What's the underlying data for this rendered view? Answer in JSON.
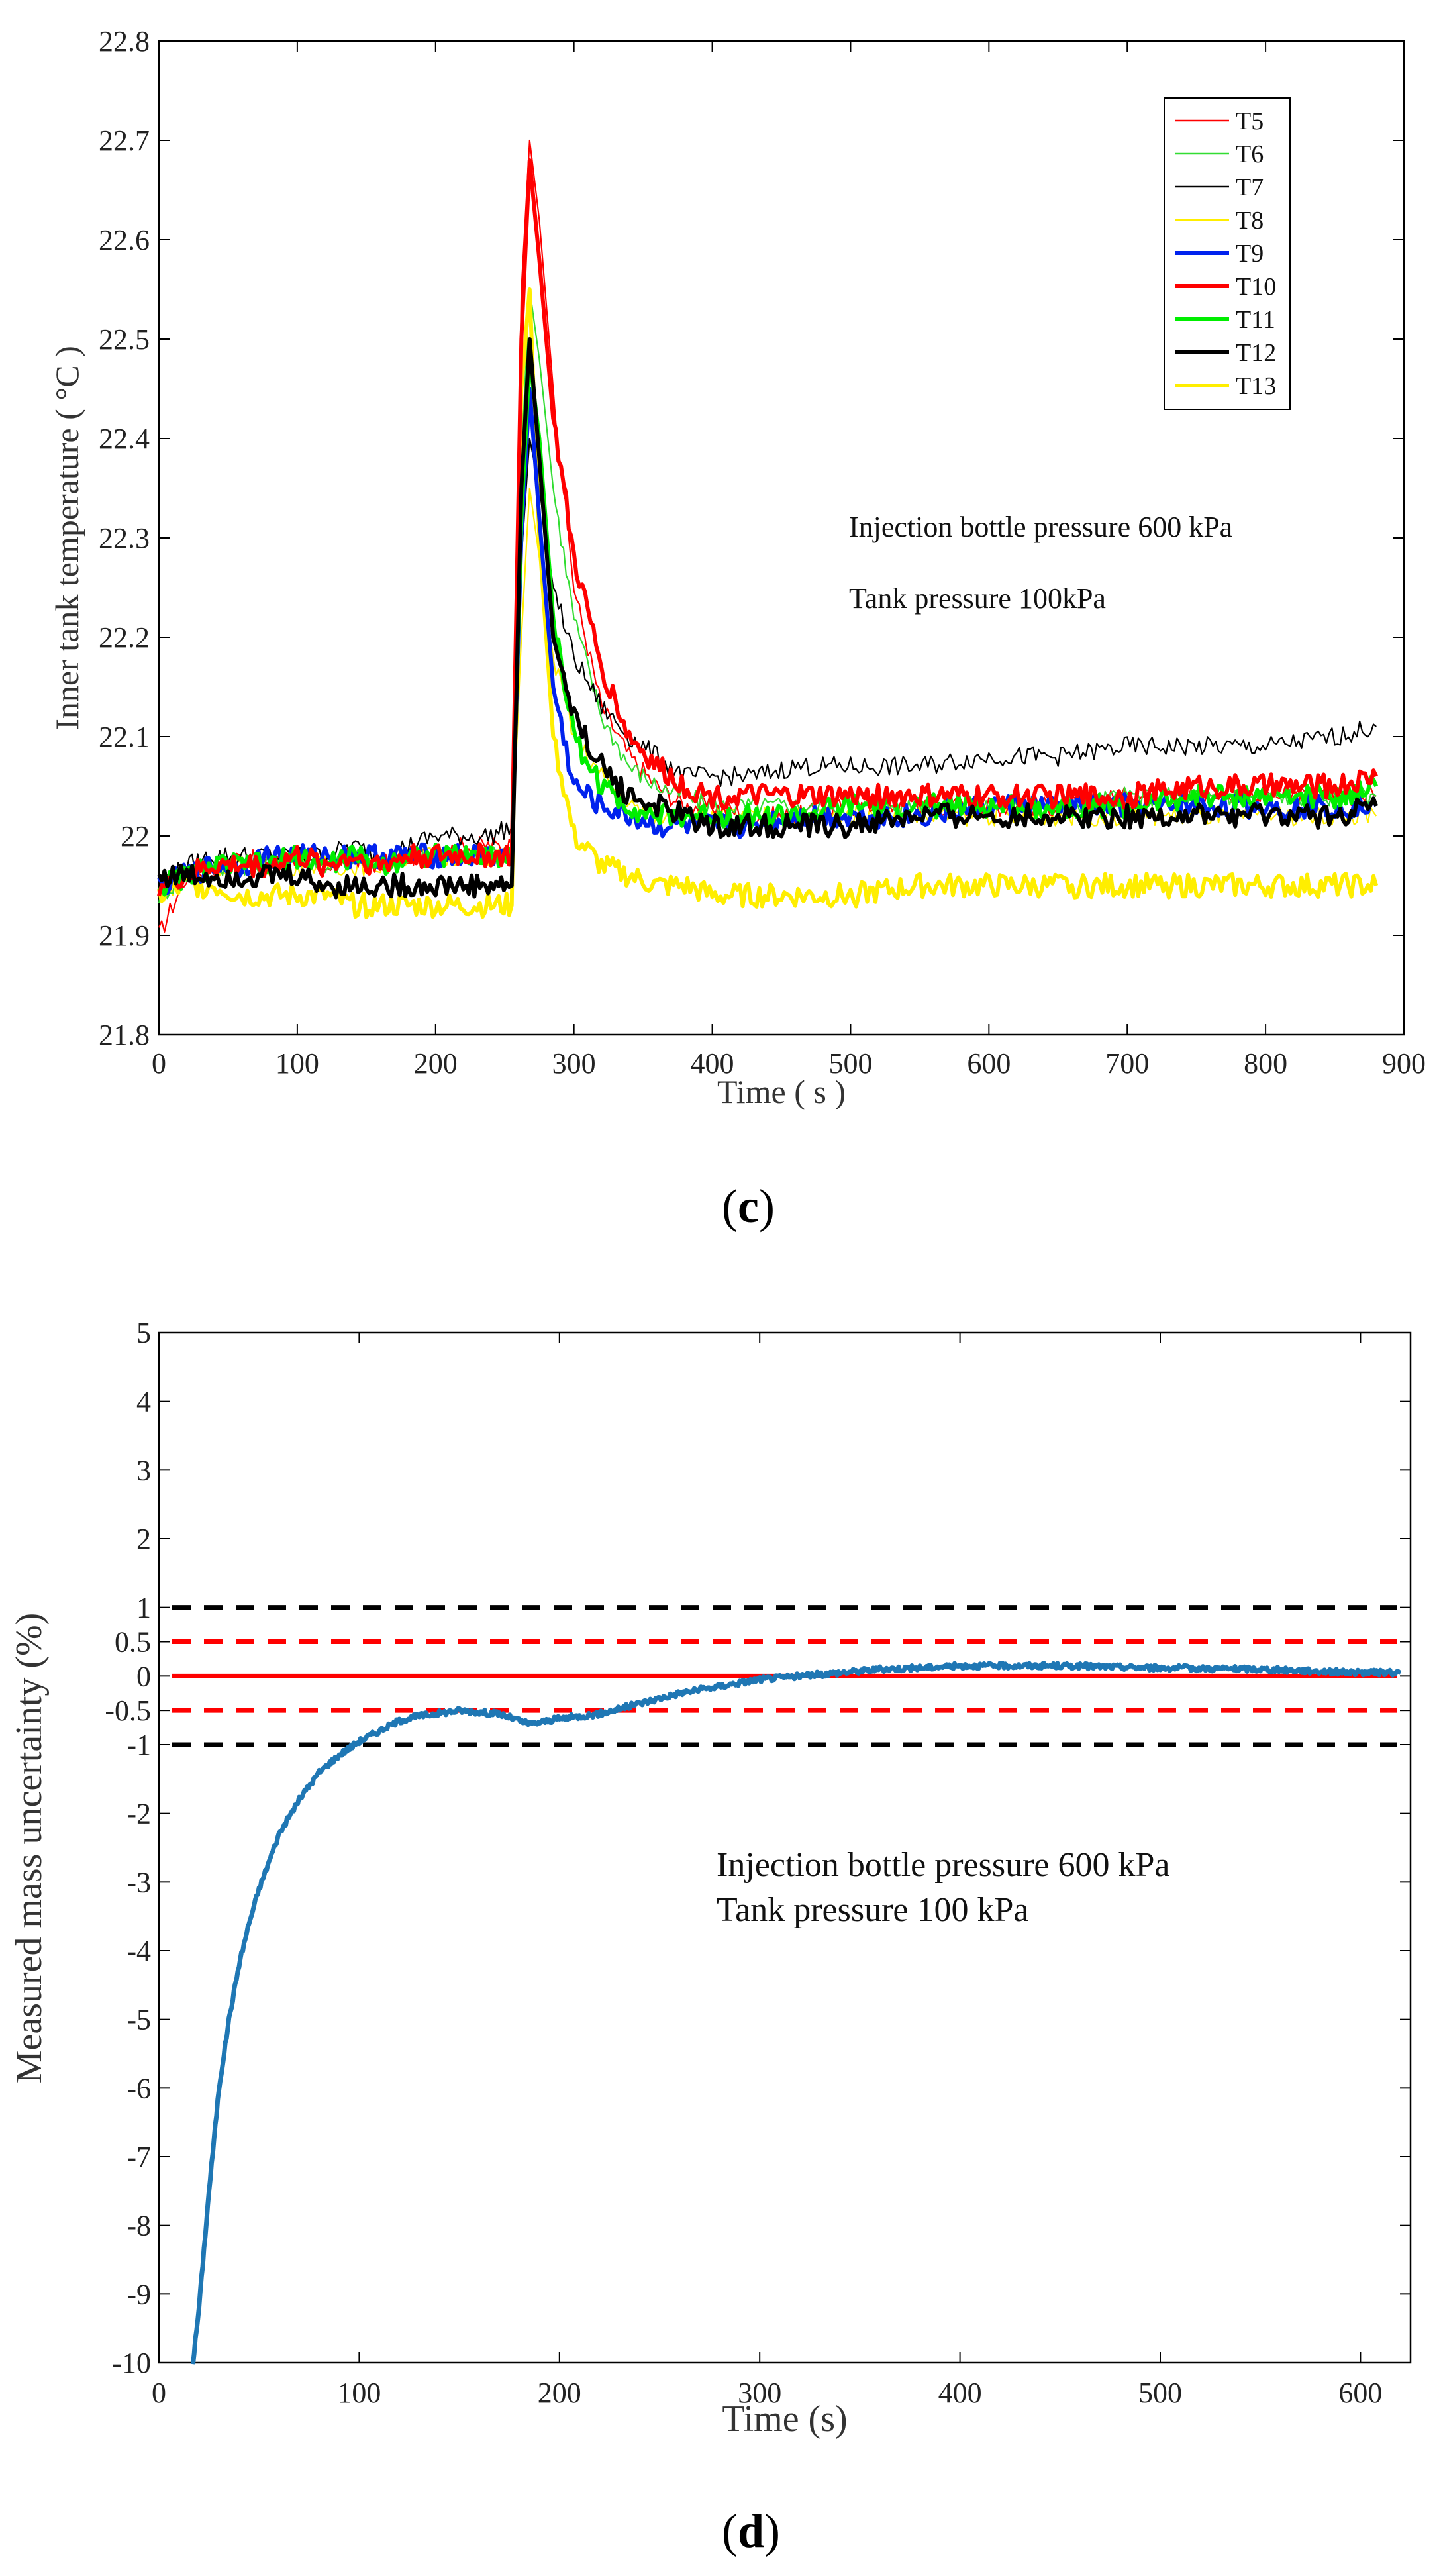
{
  "panels": {
    "c": "c",
    "d": "d"
  },
  "chart_data": [
    {
      "id": "c",
      "type": "line",
      "title": "",
      "xlabel": "Time ( s )",
      "ylabel": "Inner tank temperature ( °C )",
      "xlim": [
        0,
        900
      ],
      "ylim": [
        21.8,
        22.8
      ],
      "xticks": [
        0,
        100,
        200,
        300,
        400,
        500,
        600,
        700,
        800,
        900
      ],
      "yticks": [
        21.8,
        21.9,
        22.0,
        22.1,
        22.2,
        22.3,
        22.4,
        22.5,
        22.6,
        22.7,
        22.8
      ],
      "ytick_labels": [
        "21.8",
        "21.9",
        "22",
        "22.1",
        "22.2",
        "22.3",
        "22.4",
        "22.5",
        "22.6",
        "22.7",
        "22.8"
      ],
      "grid": false,
      "legend_position": "top-right",
      "annotations": [
        "Injection bottle pressure 600 kPa",
        "Tank pressure 100kPa"
      ],
      "x": [
        0,
        20,
        40,
        60,
        80,
        100,
        120,
        140,
        160,
        180,
        200,
        220,
        240,
        255,
        262,
        268,
        275,
        285,
        300,
        320,
        340,
        360,
        380,
        400,
        430,
        460,
        500,
        550,
        600,
        650,
        700,
        750,
        800,
        850,
        880
      ],
      "series": [
        {
          "name": "T5",
          "color": "#ff0000",
          "width": "thin",
          "values": [
            21.9,
            21.96,
            21.97,
            21.98,
            21.97,
            21.98,
            21.97,
            21.98,
            21.97,
            21.98,
            21.98,
            21.99,
            21.99,
            21.99,
            22.55,
            22.7,
            22.62,
            22.45,
            22.25,
            22.13,
            22.08,
            22.05,
            22.03,
            22.03,
            22.02,
            22.02,
            22.03,
            22.03,
            22.03,
            22.03,
            22.04,
            22.04,
            22.04,
            22.04,
            22.04
          ]
        },
        {
          "name": "T6",
          "color": "#33dd33",
          "width": "thin",
          "values": [
            21.94,
            21.96,
            21.97,
            21.97,
            21.97,
            21.98,
            21.97,
            21.98,
            21.97,
            21.98,
            21.98,
            21.98,
            21.98,
            21.98,
            22.38,
            22.55,
            22.48,
            22.35,
            22.22,
            22.12,
            22.07,
            22.05,
            22.04,
            22.03,
            22.03,
            22.03,
            22.03,
            22.03,
            22.03,
            22.03,
            22.04,
            22.04,
            22.04,
            22.04,
            22.04
          ]
        },
        {
          "name": "T7",
          "color": "#000000",
          "width": "thin",
          "values": [
            21.95,
            21.97,
            21.98,
            21.98,
            21.98,
            21.98,
            21.98,
            21.99,
            21.98,
            21.99,
            22.0,
            22.0,
            22.0,
            22.01,
            22.28,
            22.4,
            22.35,
            22.25,
            22.18,
            22.13,
            22.1,
            22.08,
            22.06,
            22.06,
            22.06,
            22.07,
            22.07,
            22.07,
            22.08,
            22.08,
            22.09,
            22.09,
            22.09,
            22.1,
            22.11
          ]
        },
        {
          "name": "T8",
          "color": "#ffee00",
          "width": "thin",
          "values": [
            21.94,
            21.96,
            21.97,
            21.97,
            21.97,
            21.97,
            21.97,
            21.97,
            21.97,
            21.98,
            21.98,
            21.98,
            21.98,
            21.98,
            22.2,
            22.35,
            22.28,
            22.18,
            22.1,
            22.06,
            22.03,
            22.02,
            22.02,
            22.02,
            22.02,
            22.02,
            22.02,
            22.02,
            22.02,
            22.02,
            22.02,
            22.02,
            22.02,
            22.02,
            22.02
          ]
        },
        {
          "name": "T9",
          "color": "#0022ee",
          "width": "thick",
          "values": [
            21.95,
            21.96,
            21.97,
            21.97,
            21.98,
            21.98,
            21.98,
            21.98,
            21.98,
            21.98,
            21.98,
            21.98,
            21.98,
            21.98,
            22.3,
            22.45,
            22.32,
            22.15,
            22.05,
            22.03,
            22.02,
            22.01,
            22.01,
            22.01,
            22.01,
            22.02,
            22.02,
            22.02,
            22.03,
            22.03,
            22.03,
            22.03,
            22.03,
            22.03,
            22.03
          ]
        },
        {
          "name": "T10",
          "color": "#ff0000",
          "width": "thick",
          "values": [
            21.95,
            21.96,
            21.97,
            21.97,
            21.97,
            21.98,
            21.97,
            21.98,
            21.97,
            21.98,
            21.98,
            21.98,
            21.98,
            21.98,
            22.5,
            22.68,
            22.58,
            22.42,
            22.28,
            22.17,
            22.1,
            22.07,
            22.05,
            22.04,
            22.04,
            22.04,
            22.04,
            22.04,
            22.04,
            22.04,
            22.04,
            22.05,
            22.05,
            22.05,
            22.06
          ]
        },
        {
          "name": "T11",
          "color": "#00ee00",
          "width": "thick",
          "values": [
            21.95,
            21.96,
            21.97,
            21.97,
            21.97,
            21.98,
            21.97,
            21.98,
            21.97,
            21.98,
            21.98,
            21.98,
            21.98,
            21.98,
            22.32,
            22.48,
            22.4,
            22.22,
            22.1,
            22.05,
            22.03,
            22.02,
            22.02,
            22.02,
            22.02,
            22.02,
            22.03,
            22.03,
            22.03,
            22.03,
            22.03,
            22.04,
            22.04,
            22.04,
            22.05
          ]
        },
        {
          "name": "T12",
          "color": "#000000",
          "width": "thick",
          "values": [
            21.96,
            21.96,
            21.96,
            21.96,
            21.96,
            21.96,
            21.95,
            21.95,
            21.95,
            21.95,
            21.95,
            21.95,
            21.95,
            21.95,
            22.35,
            22.5,
            22.38,
            22.2,
            22.12,
            22.07,
            22.04,
            22.03,
            22.02,
            22.01,
            22.01,
            22.01,
            22.01,
            22.02,
            22.02,
            22.02,
            22.02,
            22.02,
            22.02,
            22.02,
            22.03
          ]
        },
        {
          "name": "T13",
          "color": "#ffee00",
          "width": "thick",
          "values": [
            21.94,
            21.95,
            21.95,
            21.94,
            21.94,
            21.94,
            21.94,
            21.93,
            21.93,
            21.93,
            21.93,
            21.93,
            21.93,
            21.93,
            22.45,
            22.55,
            22.3,
            22.1,
            22.0,
            21.97,
            21.96,
            21.95,
            21.95,
            21.94,
            21.94,
            21.94,
            21.94,
            21.95,
            21.95,
            21.95,
            21.95,
            21.95,
            21.95,
            21.95,
            21.95
          ]
        }
      ]
    },
    {
      "id": "d",
      "type": "line",
      "title": "",
      "xlabel": "Time (s)",
      "ylabel": "Measured mass uncertainty (%)",
      "xlim": [
        0,
        625
      ],
      "ylim": [
        -10,
        5
      ],
      "xticks": [
        0,
        100,
        200,
        300,
        400,
        500,
        600
      ],
      "yticks": [
        -10,
        -9,
        -8,
        -7,
        -6,
        -5,
        -4,
        -3,
        -2,
        -1,
        -0.5,
        0,
        0.5,
        1,
        2,
        3,
        4,
        5
      ],
      "ytick_labels": [
        "-10",
        "-9",
        "-8",
        "-7",
        "-6",
        "-5",
        "-4",
        "-3",
        "-2",
        "-1",
        "-0.5",
        "0",
        "0.5",
        "1",
        "2",
        "3",
        "4",
        "5"
      ],
      "grid": false,
      "annotations": [
        "Injection bottle pressure 600 kPa",
        "Tank pressure 100 kPa"
      ],
      "reference_lines": [
        {
          "y": 1,
          "color": "#000000",
          "style": "dashed"
        },
        {
          "y": 0.5,
          "color": "#ff0000",
          "style": "dashed"
        },
        {
          "y": 0,
          "color": "#ff0000",
          "style": "solid"
        },
        {
          "y": -0.5,
          "color": "#ff0000",
          "style": "dashed"
        },
        {
          "y": -1,
          "color": "#000000",
          "style": "dashed"
        }
      ],
      "series": [
        {
          "color": "#1f77b4",
          "x": [
            17,
            20,
            25,
            30,
            35,
            40,
            45,
            50,
            55,
            60,
            70,
            80,
            90,
            100,
            110,
            120,
            130,
            150,
            170,
            185,
            200,
            220,
            240,
            260,
            280,
            300,
            320,
            340,
            360,
            380,
            400,
            450,
            500,
            550,
            600,
            620
          ],
          "values": [
            -10,
            -9.2,
            -7.5,
            -6.0,
            -5.0,
            -4.2,
            -3.6,
            -3.1,
            -2.7,
            -2.3,
            -1.8,
            -1.4,
            -1.15,
            -0.95,
            -0.8,
            -0.65,
            -0.58,
            -0.5,
            -0.55,
            -0.7,
            -0.62,
            -0.55,
            -0.4,
            -0.25,
            -0.15,
            -0.05,
            0.0,
            0.05,
            0.1,
            0.12,
            0.15,
            0.15,
            0.12,
            0.1,
            0.05,
            0.05
          ]
        }
      ]
    }
  ]
}
